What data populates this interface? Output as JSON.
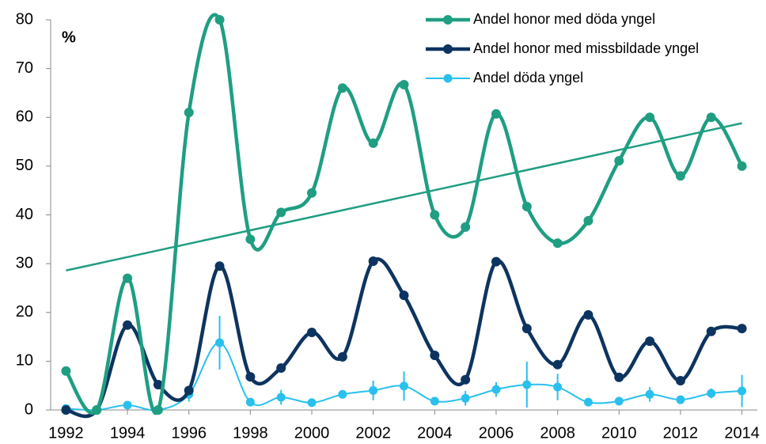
{
  "chart_data": {
    "type": "line",
    "y_label": "%",
    "x": [
      1992,
      1993,
      1994,
      1995,
      1996,
      1997,
      1998,
      1999,
      2000,
      2001,
      2002,
      2003,
      2004,
      2005,
      2006,
      2007,
      2008,
      2009,
      2010,
      2011,
      2012,
      2013,
      2014
    ],
    "series": [
      {
        "name": "Andel honor med döda yngel",
        "color": "#1f9e82",
        "values": [
          8,
          0,
          27,
          0,
          61,
          80,
          35,
          40.5,
          44.5,
          66,
          54.7,
          66.7,
          40,
          37.5,
          60.7,
          41.7,
          34.2,
          38.8,
          51.1,
          60,
          48,
          60,
          50
        ]
      },
      {
        "name": "Andel honor med missbildade yngel",
        "color": "#0d3460",
        "values": [
          0,
          0,
          17.4,
          5.2,
          4,
          29.5,
          6.8,
          8.6,
          15.9,
          10.9,
          30.5,
          23.5,
          11.2,
          6.2,
          30.4,
          16.7,
          9.3,
          19.5,
          6.7,
          14.1,
          6,
          16.1,
          16.7
        ]
      },
      {
        "name": "Andel döda yngel",
        "color": "#29c0ee",
        "values": [
          0.3,
          0,
          1,
          0,
          3.2,
          13.8,
          1.6,
          2.6,
          1.5,
          3.2,
          4,
          4.9,
          1.8,
          2.4,
          4.2,
          5.2,
          4.7,
          1.6,
          1.8,
          3.2,
          2.1,
          3.4,
          3.9
        ],
        "errors": [
          0,
          0,
          0,
          0,
          1.5,
          5.5,
          0,
          1.5,
          0,
          0,
          2,
          3,
          0,
          1.5,
          1.5,
          4.7,
          2.7,
          0,
          0,
          1.5,
          0,
          1,
          3.3
        ]
      }
    ],
    "trendline": {
      "color": "#1f9e82",
      "x": [
        1992,
        2014
      ],
      "values": [
        28.6,
        58.8
      ]
    },
    "xlim": [
      1991.5,
      2014.5
    ],
    "xticks": [
      1992,
      1994,
      1996,
      1998,
      2000,
      2002,
      2004,
      2006,
      2008,
      2010,
      2012,
      2014
    ],
    "ylim": [
      0,
      80
    ],
    "yticks": [
      0,
      10,
      20,
      30,
      40,
      50,
      60,
      70,
      80
    ],
    "legend": "top-right"
  }
}
